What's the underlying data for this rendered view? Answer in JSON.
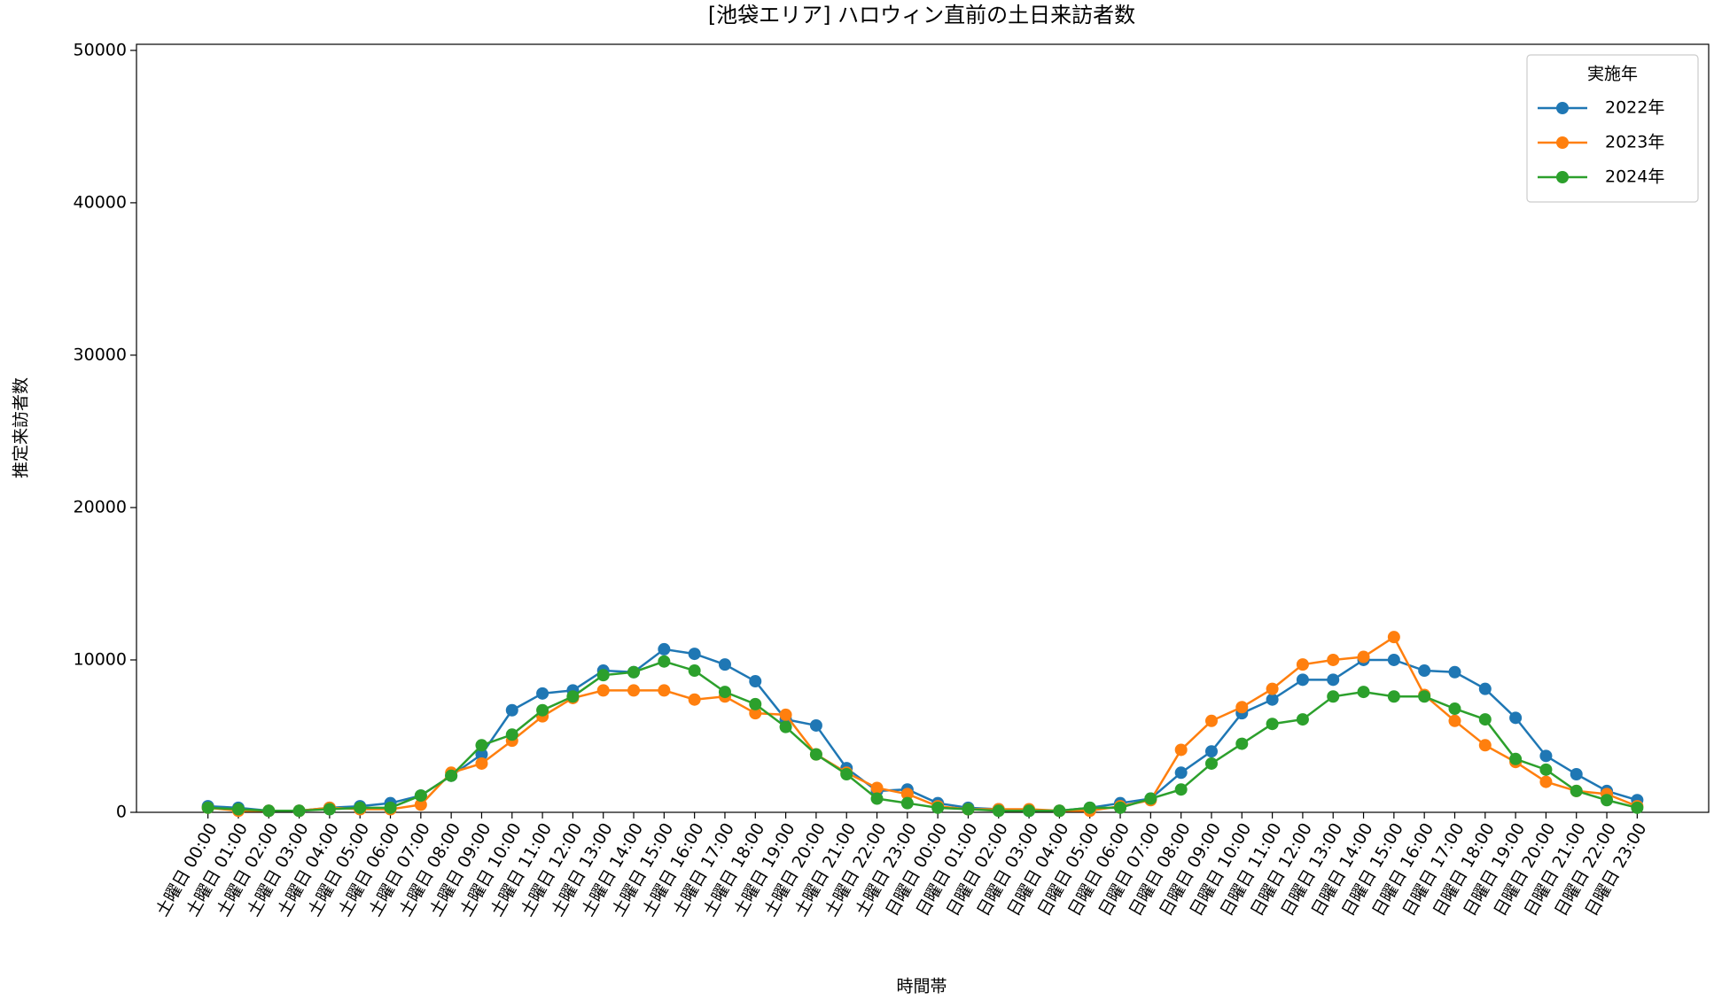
{
  "chart_data": {
    "type": "line",
    "title": "[池袋エリア] ハロウィン直前の土日来訪者数",
    "x_label": "時間帯",
    "y_label": "推定来訪者数",
    "categories": [
      "土曜日 00:00",
      "土曜日 01:00",
      "土曜日 02:00",
      "土曜日 03:00",
      "土曜日 04:00",
      "土曜日 05:00",
      "土曜日 06:00",
      "土曜日 07:00",
      "土曜日 08:00",
      "土曜日 09:00",
      "土曜日 10:00",
      "土曜日 11:00",
      "土曜日 12:00",
      "土曜日 13:00",
      "土曜日 14:00",
      "土曜日 15:00",
      "土曜日 16:00",
      "土曜日 17:00",
      "土曜日 18:00",
      "土曜日 19:00",
      "土曜日 20:00",
      "土曜日 21:00",
      "土曜日 22:00",
      "土曜日 23:00",
      "日曜日 00:00",
      "日曜日 01:00",
      "日曜日 02:00",
      "日曜日 03:00",
      "日曜日 04:00",
      "日曜日 05:00",
      "日曜日 06:00",
      "日曜日 07:00",
      "日曜日 08:00",
      "日曜日 09:00",
      "日曜日 10:00",
      "日曜日 11:00",
      "日曜日 12:00",
      "日曜日 13:00",
      "日曜日 14:00",
      "日曜日 15:00",
      "日曜日 16:00",
      "日曜日 17:00",
      "日曜日 18:00",
      "日曜日 19:00",
      "日曜日 20:00",
      "日曜日 21:00",
      "日曜日 22:00",
      "日曜日 23:00"
    ],
    "series": [
      {
        "name": "2022年",
        "color": "#1f77b4",
        "values": [
          400,
          300,
          100,
          100,
          300,
          400,
          600,
          1100,
          2400,
          3800,
          6700,
          7800,
          8000,
          9300,
          9200,
          10700,
          10400,
          9700,
          8600,
          6100,
          5700,
          2900,
          1400,
          1500,
          600,
          300,
          200,
          100,
          100,
          300,
          600,
          900,
          2600,
          4000,
          6500,
          7400,
          8700,
          8700,
          10000,
          10000,
          9300,
          9200,
          8100,
          6200,
          3700,
          2500,
          1400,
          800
        ]
      },
      {
        "name": "2023年",
        "color": "#ff7f0e",
        "values": [
          300,
          100,
          100,
          100,
          300,
          200,
          200,
          500,
          2600,
          3200,
          4700,
          6300,
          7500,
          8000,
          8000,
          8000,
          7400,
          7600,
          6500,
          6400,
          3800,
          2600,
          1600,
          1200,
          400,
          200,
          200,
          200,
          100,
          100,
          400,
          800,
          4100,
          6000,
          6900,
          8100,
          9700,
          10000,
          10200,
          11500,
          7700,
          6000,
          4400,
          3300,
          2000,
          1400,
          1200,
          400
        ]
      },
      {
        "name": "2024年",
        "color": "#2ca02c",
        "values": [
          300,
          200,
          100,
          100,
          200,
          300,
          300,
          1100,
          2400,
          4400,
          5100,
          6700,
          7600,
          9000,
          9200,
          9900,
          9300,
          7900,
          7100,
          5600,
          3800,
          2500,
          900,
          600,
          300,
          200,
          100,
          100,
          100,
          300,
          300,
          900,
          1500,
          3200,
          4500,
          5800,
          6100,
          7600,
          7900,
          7600,
          7600,
          6800,
          6100,
          3500,
          2800,
          1400,
          800,
          300
        ]
      }
    ],
    "legend_title": "実施年",
    "legend_loc": "upper right",
    "ylim": [
      0,
      50400
    ],
    "yticks": [
      0,
      10000,
      20000,
      30000,
      40000,
      50000
    ]
  }
}
